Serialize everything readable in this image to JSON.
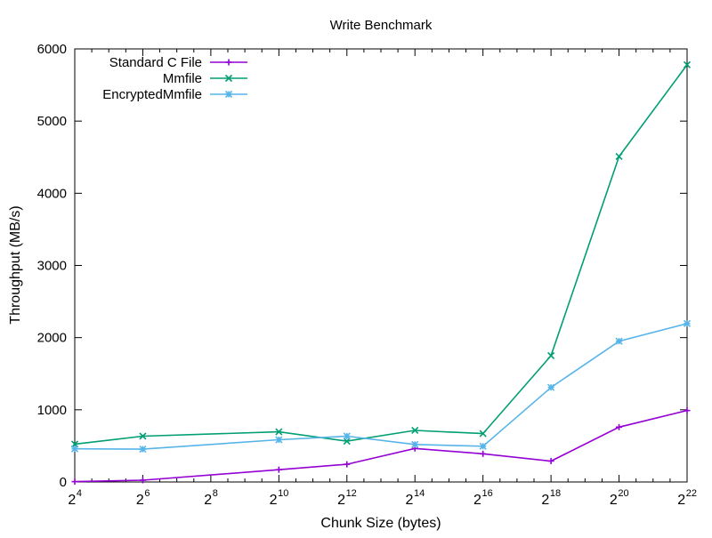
{
  "chart_data": {
    "type": "line",
    "title": "Write Benchmark",
    "xlabel": "Chunk Size (bytes)",
    "ylabel": "Throughput (MB/s)",
    "x_scale": "log2",
    "x_tick_base": "2",
    "x": [
      16,
      64,
      1024,
      4096,
      16384,
      65536,
      262144,
      1048576,
      4194304
    ],
    "x_ticks": [
      {
        "value": 16,
        "exponent": "4"
      },
      {
        "value": 64,
        "exponent": "6"
      },
      {
        "value": 256,
        "exponent": "8"
      },
      {
        "value": 1024,
        "exponent": "10"
      },
      {
        "value": 4096,
        "exponent": "12"
      },
      {
        "value": 16384,
        "exponent": "14"
      },
      {
        "value": 65536,
        "exponent": "16"
      },
      {
        "value": 262144,
        "exponent": "18"
      },
      {
        "value": 1048576,
        "exponent": "20"
      },
      {
        "value": 4194304,
        "exponent": "22"
      }
    ],
    "xlim": [
      16,
      4194304
    ],
    "y_ticks": [
      0,
      1000,
      2000,
      3000,
      4000,
      5000,
      6000
    ],
    "ylim": [
      0,
      6000
    ],
    "legend_position": "top-left",
    "grid": false,
    "series": [
      {
        "name": "Standard C File",
        "color": "#9400d3",
        "marker": "plus",
        "values": [
          5,
          25,
          170,
          245,
          465,
          390,
          290,
          760,
          990
        ]
      },
      {
        "name": "Mmfile",
        "color": "#009e73",
        "marker": "cross",
        "values": [
          525,
          635,
          695,
          565,
          715,
          670,
          1750,
          4510,
          5780
        ]
      },
      {
        "name": "EncryptedMmfile",
        "color": "#56b4e9",
        "marker": "asterisk",
        "values": [
          460,
          455,
          585,
          635,
          520,
          495,
          1310,
          1950,
          2195
        ]
      }
    ]
  }
}
